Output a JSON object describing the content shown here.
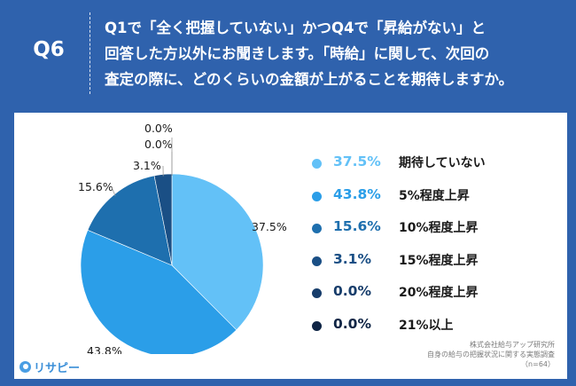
{
  "question": {
    "label": "Q6",
    "line1": "Q1で「全く把握していない」かつQ4で「昇給がない」と",
    "line2": "回答した方以外にお聞きします。「時給」に関して、次回の",
    "line3": "査定の際に、どのくらいの金額が上がることを期待しますか。"
  },
  "legend": [
    {
      "value": "37.5%",
      "label": "期待していない",
      "color": "#63c1f7"
    },
    {
      "value": "43.8%",
      "label": "5%程度上昇",
      "color": "#2b9ee8"
    },
    {
      "value": "15.6%",
      "label": "10%程度上昇",
      "color": "#1e6fae"
    },
    {
      "value": "3.1%",
      "label": "15%程度上昇",
      "color": "#1a4f85"
    },
    {
      "value": "0.0%",
      "label": "20%程度上昇",
      "color": "#173d6b"
    },
    {
      "value": "0.0%",
      "label": "21%以上",
      "color": "#0f2545"
    }
  ],
  "footnote": {
    "line1": "株式会社給与アップ研究所",
    "line2": "自身の給与の把握状況に関する実態調査",
    "line3": "（n=64）"
  },
  "brand": {
    "name": "リサピー",
    "icon": "risapi-logo-icon"
  },
  "chart_data": {
    "type": "pie",
    "categories": [
      "期待していない",
      "5%程度上昇",
      "10%程度上昇",
      "15%程度上昇",
      "20%程度上昇",
      "21%以上"
    ],
    "values": [
      37.5,
      43.8,
      15.6,
      3.1,
      0.0,
      0.0
    ],
    "labels": [
      "37.5%",
      "43.8%",
      "15.6%",
      "3.1%",
      "0.0%",
      "0.0%"
    ],
    "colors": [
      "#63c1f7",
      "#2b9ee8",
      "#1e6fae",
      "#1a4f85",
      "#173d6b",
      "#0f2545"
    ],
    "legend_position": "right"
  }
}
